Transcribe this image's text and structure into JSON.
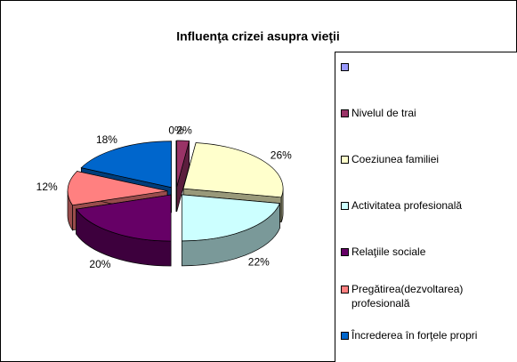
{
  "chart_data": {
    "type": "pie3d",
    "title": "Influenţa crizei asupra vieţii",
    "categories": [
      "",
      "Nivelul de trai",
      "Coeziunea familiei",
      "Activitatea profesională",
      "Relaţiile sociale",
      "Pregătirea(dezvoltarea) profesională",
      "Încrederea în forţele propri"
    ],
    "values": [
      0,
      2,
      26,
      22,
      20,
      12,
      18
    ],
    "value_labels": [
      "0%",
      "2%",
      "26%",
      "22%",
      "20%",
      "12%",
      "18%"
    ],
    "colors": [
      "#9999ff",
      "#993366",
      "#ffffcc",
      "#ccffff",
      "#660066",
      "#ff8080",
      "#0066cc"
    ],
    "legend": "right"
  }
}
